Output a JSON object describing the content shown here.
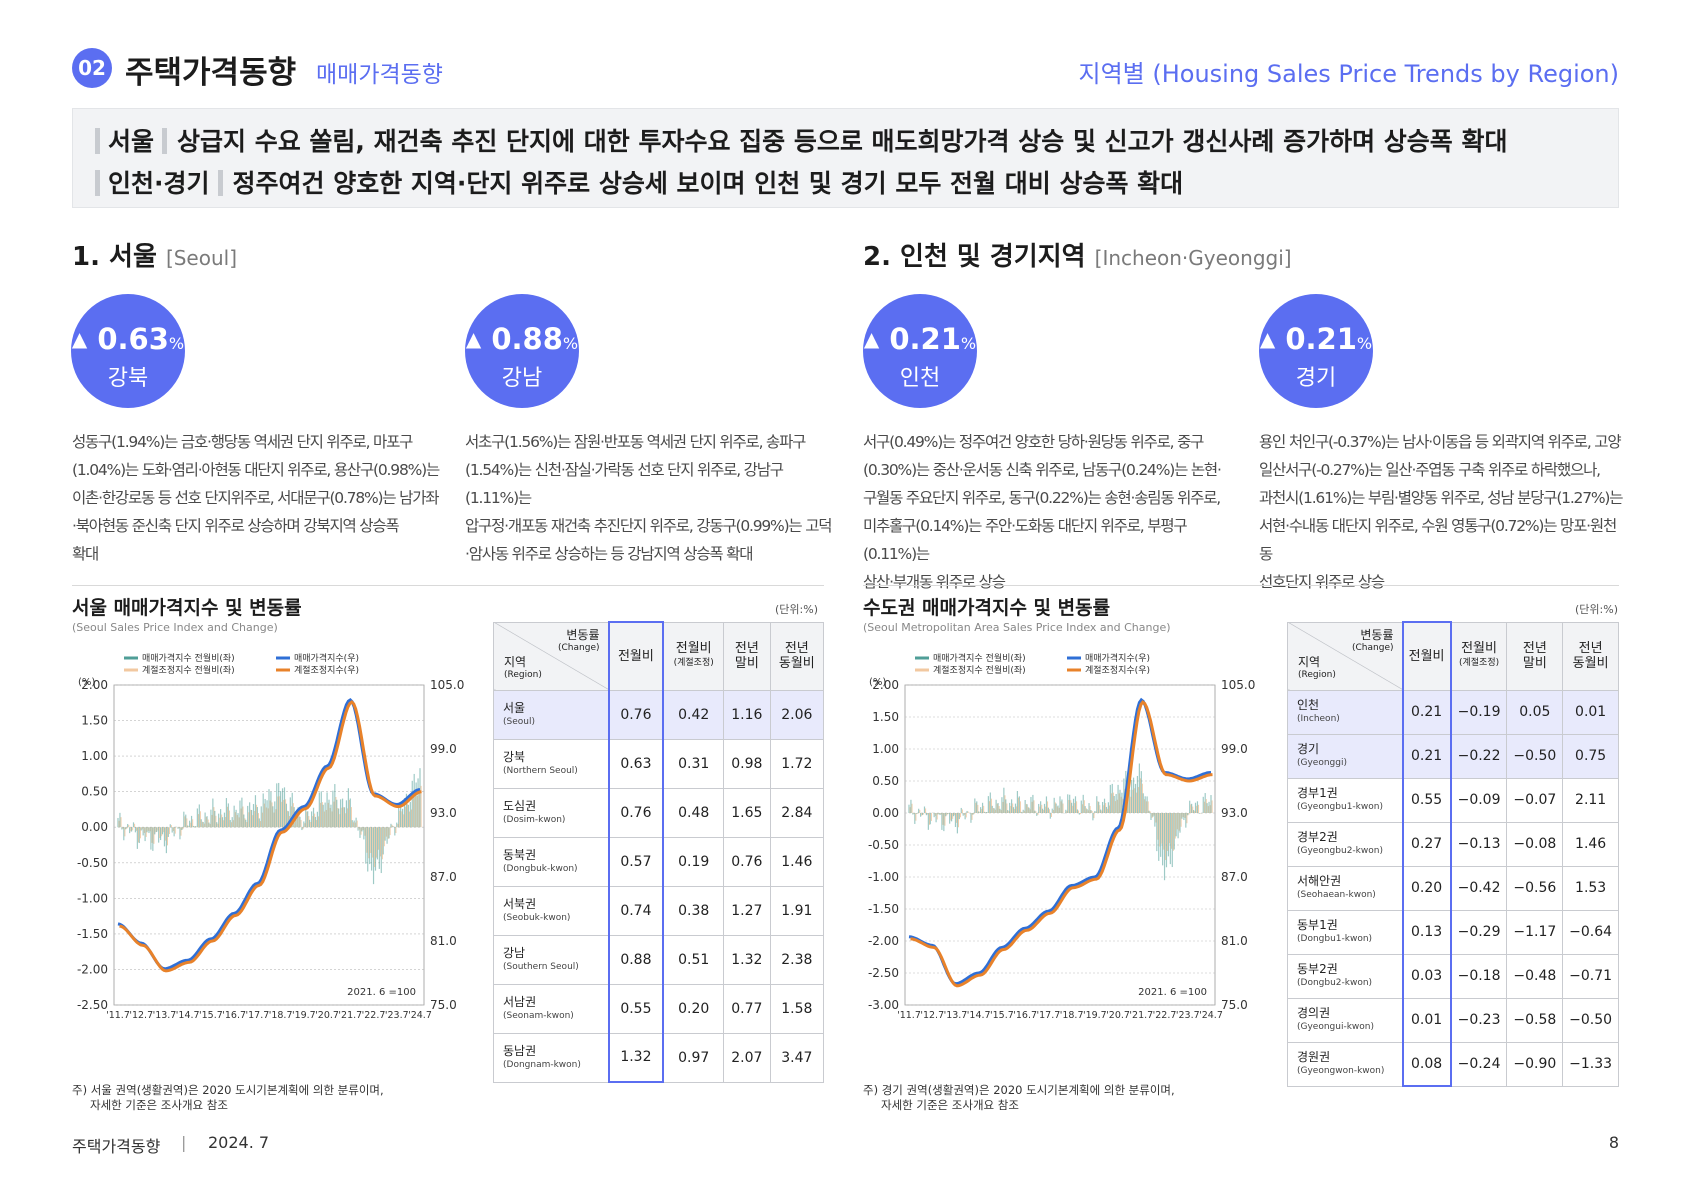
{
  "header": {
    "badge": "02",
    "title": "주택가격동향",
    "subtitle": "매매가격동향",
    "right": "지역별 (Housing Sales Price Trends by Region)"
  },
  "summary": {
    "line1_label": "서울",
    "line1_text": "상급지 수요 쏠림,  재건축 추진 단지에 대한 투자수요 집중 등으로 매도희망가격 상승 및 신고가 갱신사례 증가하며 상승폭 확대",
    "line2_label": "인천·경기",
    "line2_text": "정주여건 양호한 지역·단지 위주로 상승세 보이며 인천 및 경기 모두 전월 대비 상승폭 확대"
  },
  "seoul": {
    "title": "1. 서울",
    "title_en": "[Seoul]",
    "cards": [
      {
        "value": "0.63",
        "unit": "%",
        "name": "강북",
        "desc": [
          "성동구(1.94%)는 금호·행당동 역세권 단지 위주로, 마포구",
          "(1.04%)는 도화·염리·아현동 대단지 위주로, 용산구(0.98%)는",
          "이촌·한강로동 등 선호 단지위주로, 서대문구(0.78%)는 남가좌",
          "·북아현동 준신축 단지 위주로 상승하며 강북지역 상승폭",
          "확대"
        ]
      },
      {
        "value": "0.88",
        "unit": "%",
        "name": "강남",
        "desc": [
          "서초구(1.56%)는 잠원·반포동 역세권 단지 위주로, 송파구",
          "(1.54%)는 신천·잠실·가락동 선호 단지 위주로, 강남구(1.11%)는",
          "압구정·개포동 재건축 추진단지 위주로, 강동구(0.99%)는 고덕",
          "·암사동 위주로 상승하는 등 강남지역 상승폭 확대"
        ]
      }
    ],
    "chart_title": "서울 매매가격지수 및 변동률",
    "chart_sub": "(Seoul Sales Price Index and Change)",
    "unit": "(단위:%)",
    "note": [
      "주) 서울 권역(생활권역)은 2020 도시기본계획에 의한 분류이며,",
      "자세한 기준은 조사개요 참조"
    ],
    "table_head": {
      "col0_top": "변동률",
      "col0_top_en": "(Change)",
      "col0_bot": "지역",
      "col0_bot_en": "(Region)",
      "c1": "전월비",
      "c2": "전월비",
      "c2_sub": "(계절조정)",
      "c3": "전년\n말비",
      "c4": "전년\n동월비"
    },
    "rows": [
      {
        "ko": "서울",
        "en": "(Seoul)",
        "v": [
          "0.76",
          "0.42",
          "1.16",
          "2.06"
        ],
        "hl": true
      },
      {
        "ko": "강북",
        "en": "(Northern Seoul)",
        "v": [
          "0.63",
          "0.31",
          "0.98",
          "1.72"
        ]
      },
      {
        "ko": "도심권",
        "en": "(Dosim-kwon)",
        "v": [
          "0.76",
          "0.48",
          "1.65",
          "2.84"
        ]
      },
      {
        "ko": "동북권",
        "en": "(Dongbuk-kwon)",
        "v": [
          "0.57",
          "0.19",
          "0.76",
          "1.46"
        ]
      },
      {
        "ko": "서북권",
        "en": "(Seobuk-kwon)",
        "v": [
          "0.74",
          "0.38",
          "1.27",
          "1.91"
        ]
      },
      {
        "ko": "강남",
        "en": "(Southern Seoul)",
        "v": [
          "0.88",
          "0.51",
          "1.32",
          "2.38"
        ]
      },
      {
        "ko": "서남권",
        "en": "(Seonam-kwon)",
        "v": [
          "0.55",
          "0.20",
          "0.77",
          "1.58"
        ]
      },
      {
        "ko": "동남권",
        "en": "(Dongnam-kwon)",
        "v": [
          "1.32",
          "0.97",
          "2.07",
          "3.47"
        ]
      }
    ]
  },
  "capital": {
    "title": "2. 인천 및 경기지역",
    "title_en": "[Incheon·Gyeonggi]",
    "cards": [
      {
        "value": "0.21",
        "unit": "%",
        "name": "인천",
        "desc": [
          "서구(0.49%)는 정주여건 양호한 당하·원당동 위주로, 중구",
          "(0.30%)는 중산·운서동 신축 위주로, 남동구(0.24%)는 논현·",
          "구월동 주요단지 위주로, 동구(0.22%)는 송현·송림동 위주로,",
          "미추홀구(0.14%)는 주안·도화동 대단지 위주로, 부평구(0.11%)는",
          "삼산·부개동 위주로 상승"
        ]
      },
      {
        "value": "0.21",
        "unit": "%",
        "name": "경기",
        "desc": [
          "용인 처인구(-0.37%)는 남사·이동읍 등 외곽지역 위주로, 고양",
          "일산서구(-0.27%)는 일산·주엽동 구축 위주로 하락했으나,",
          "과천시(1.61%)는 부림·별양동 위주로, 성남 분당구(1.27%)는",
          "서현·수내동 대단지 위주로, 수원 영통구(0.72%)는 망포·원천동",
          "선호단지 위주로 상승"
        ]
      }
    ],
    "chart_title": "수도권 매매가격지수 및 변동률",
    "chart_sub": "(Seoul Metropolitan Area Sales Price Index and Change)",
    "unit": "(단위:%)",
    "note": [
      "주) 경기 권역(생활권역)은 2020 도시기본계획에 의한 분류이며,",
      "자세한 기준은 조사개요 참조"
    ],
    "table_head": {
      "col0_top": "변동률",
      "col0_top_en": "(Change)",
      "col0_bot": "지역",
      "col0_bot_en": "(Region)",
      "c1": "전월비",
      "c2": "전월비",
      "c2_sub": "(계절조정)",
      "c3": "전년\n말비",
      "c4": "전년\n동월비"
    },
    "rows": [
      {
        "ko": "인천",
        "en": "(Incheon)",
        "v": [
          "0.21",
          "−0.19",
          "0.05",
          "0.01"
        ],
        "hl": true
      },
      {
        "ko": "경기",
        "en": "(Gyeonggi)",
        "v": [
          "0.21",
          "−0.22",
          "−0.50",
          "0.75"
        ],
        "hl": true
      },
      {
        "ko": "경부1권",
        "en": "(Gyeongbu1-kwon)",
        "v": [
          "0.55",
          "−0.09",
          "−0.07",
          "2.11"
        ]
      },
      {
        "ko": "경부2권",
        "en": "(Gyeongbu2-kwon)",
        "v": [
          "0.27",
          "−0.13",
          "−0.08",
          "1.46"
        ]
      },
      {
        "ko": "서해안권",
        "en": "(Seohaean-kwon)",
        "v": [
          "0.20",
          "−0.42",
          "−0.56",
          "1.53"
        ]
      },
      {
        "ko": "동부1권",
        "en": "(Dongbu1-kwon)",
        "v": [
          "0.13",
          "−0.29",
          "−1.17",
          "−0.64"
        ]
      },
      {
        "ko": "동부2권",
        "en": "(Dongbu2-kwon)",
        "v": [
          "0.03",
          "−0.18",
          "−0.48",
          "−0.71"
        ]
      },
      {
        "ko": "경의권",
        "en": "(Gyeongui-kwon)",
        "v": [
          "0.01",
          "−0.23",
          "−0.58",
          "−0.50"
        ]
      },
      {
        "ko": "경원권",
        "en": "(Gyeongwon-kwon)",
        "v": [
          "0.08",
          "−0.24",
          "−0.90",
          "−1.33"
        ]
      }
    ]
  },
  "chart_data": [
    {
      "type": "line",
      "title": "서울 매매가격지수 및 변동률",
      "subtitle": "(Seoul Sales Price Index and Change)",
      "ylabel": "(%)",
      "ylim": [
        -2.5,
        2.0
      ],
      "y2lim": [
        75.0,
        105.0
      ],
      "y_ticks": [
        "2.00",
        "1.50",
        "1.00",
        "0.50",
        "0.00",
        "-0.50",
        "-1.00",
        "-1.50",
        "-2.00",
        "-2.50"
      ],
      "y2_ticks": [
        "105.0",
        "99.0",
        "93.0",
        "87.0",
        "81.0",
        "75.0"
      ],
      "x_ticks": [
        "'11.7",
        "'12.7",
        "'13.7",
        "'14.7",
        "'15.7",
        "'16.7",
        "'17.7",
        "'18.7",
        "'19.7",
        "'20.7",
        "'21.7",
        "'22.7",
        "'23.7",
        "'24.7"
      ],
      "base_note": "2021. 6 =100",
      "legend": [
        "매매가격지수 전월비(좌)",
        "매매가격지수(우)",
        "계절조정지수 전월비(좌)",
        "계절조정지수(우)"
      ],
      "series": [
        {
          "name": "매매가격지수(우)",
          "x": [
            "'11.7",
            "'12.7",
            "'13.7",
            "'14.7",
            "'15.7",
            "'16.7",
            "'17.7",
            "'18.7",
            "'19.7",
            "'20.7",
            "'21.7",
            "'22.7",
            "'23.7",
            "'24.7"
          ],
          "values": [
            82.6,
            80.8,
            78.4,
            79.2,
            81.2,
            83.6,
            86.4,
            91.4,
            93.6,
            97.4,
            103.6,
            94.8,
            93.8,
            95.2
          ]
        },
        {
          "name": "매매가격지수 전월비(좌)",
          "x": [
            "'11.7",
            "'12.7",
            "'13.7",
            "'14.7",
            "'15.7",
            "'16.7",
            "'17.7",
            "'18.7",
            "'19.7",
            "'20.7",
            "'21.7",
            "'22.7",
            "'23.7",
            "'24.7"
          ],
          "values": [
            0.05,
            -0.15,
            -0.2,
            0.1,
            0.2,
            0.25,
            0.3,
            0.55,
            0.1,
            0.45,
            0.35,
            -0.75,
            0.15,
            0.76
          ]
        }
      ]
    },
    {
      "type": "line",
      "title": "수도권 매매가격지수 및 변동률",
      "subtitle": "(Seoul Metropolitan Area Sales Price Index and Change)",
      "ylabel": "(%)",
      "ylim": [
        -3.0,
        2.0
      ],
      "y2lim": [
        75.0,
        105.0
      ],
      "y_ticks": [
        "2.00",
        "1.50",
        "1.00",
        "0.50",
        "0.00",
        "-0.50",
        "-1.00",
        "-1.50",
        "-2.00",
        "-2.50",
        "-3.00"
      ],
      "y2_ticks": [
        "105.0",
        "99.0",
        "93.0",
        "87.0",
        "81.0",
        "75.0"
      ],
      "x_ticks": [
        "'11.7",
        "'12.7",
        "'13.7",
        "'14.7",
        "'15.7",
        "'16.7",
        "'17.7",
        "'18.7",
        "'19.7",
        "'20.7",
        "'21.7",
        "'22.7",
        "'23.7",
        "'24.7"
      ],
      "base_note": "2021. 6 =100",
      "legend": [
        "매매가격지수 전월비(좌)",
        "매매가격지수(우)",
        "계절조정지수 전월비(좌)",
        "계절조정지수(우)"
      ],
      "series": [
        {
          "name": "매매가격지수(우)",
          "x": [
            "'11.7",
            "'12.7",
            "'13.7",
            "'14.7",
            "'15.7",
            "'16.7",
            "'17.7",
            "'18.7",
            "'19.7",
            "'20.7",
            "'21.7",
            "'22.7",
            "'23.7",
            "'24.7"
          ],
          "values": [
            81.4,
            80.6,
            77.0,
            78.0,
            80.4,
            82.2,
            83.8,
            86.2,
            87.0,
            91.6,
            103.6,
            96.8,
            96.2,
            96.8
          ]
        },
        {
          "name": "매매가격지수 전월비(좌)",
          "x": [
            "'11.7",
            "'12.7",
            "'13.7",
            "'14.7",
            "'15.7",
            "'16.7",
            "'17.7",
            "'18.7",
            "'19.7",
            "'20.7",
            "'21.7",
            "'22.7",
            "'23.7",
            "'24.7"
          ],
          "values": [
            0.05,
            -0.1,
            -0.15,
            0.1,
            0.2,
            0.15,
            0.1,
            0.2,
            0.05,
            0.4,
            0.6,
            -1.0,
            0.05,
            0.21
          ]
        }
      ]
    }
  ],
  "footer": {
    "left": "주택가격동향",
    "sep": "|",
    "date": "2024. 7",
    "page": "8"
  },
  "colors": {
    "accent": "#5b6ef1",
    "index_line": "#2f6fd6",
    "sa_index_line": "#e8822a",
    "bar_main": "#4f9e97",
    "bar_sa": "#f2c8a0"
  }
}
